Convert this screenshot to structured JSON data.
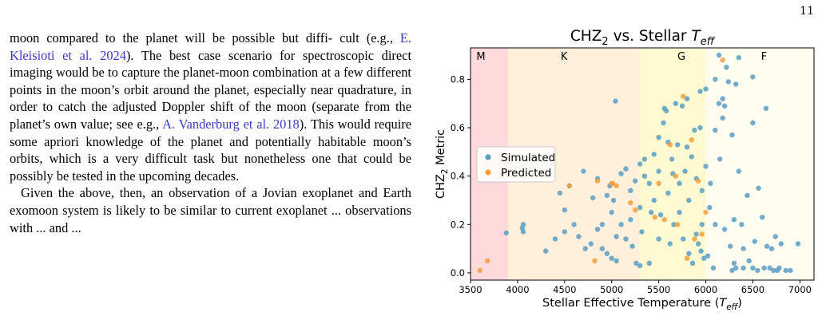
{
  "page": {
    "number": "11"
  },
  "body_text": {
    "p1": [
      {
        "t": "moon compared to the planet will be possible but diffi- cult (e.g., "
      },
      {
        "t": "E. Kleisioti et al. 2024",
        "cite": true
      },
      {
        "t": "). The best case scenario for spectroscopic direct imaging would be to capture the planet-moon combination at a few different points in the moon’s orbit around the planet, especially near quadrature, in order to catch the adjusted Doppler shift of the moon (separate from the planet’s own value; see e.g., "
      },
      {
        "t": "A. Vanderburg et al. 2018",
        "cite": true
      },
      {
        "t": "). This would require some apriori knowledge of the planet and potentially habitable moon’s orbits, which is a very difficult task but nonetheless one that could be possibly be tested in the upcoming decades."
      }
    ],
    "p2": [
      {
        "t": "Given the above, then, an observation of a Jovian exoplanet and Earth exomoon system is likely to be similar to current exoplanet ... observations with ... and ..."
      }
    ]
  },
  "chart_data": {
    "type": "scatter",
    "title": "CHZ",
    "title_sub": "2",
    "title_mid": " vs. Stellar ",
    "title_var": "T",
    "title_var_sub": "eff",
    "xlabel": "Stellar Effective Temperature (",
    "xlabel_var": "T",
    "xlabel_var_sub": "eff",
    "xlabel_end": ")",
    "ylabel": "CHZ",
    "ylabel_sub": "2",
    "ylabel_end": " Metric",
    "xlim": [
      3500,
      7150
    ],
    "ylim": [
      -0.03,
      0.93
    ],
    "xticks": [
      3500,
      4000,
      4500,
      5000,
      5500,
      6000,
      6500,
      7000
    ],
    "yticks": [
      0.0,
      0.2,
      0.4,
      0.6,
      0.8
    ],
    "ytick_labels": [
      "0.0",
      "0.2",
      "0.4",
      "0.6",
      "0.8"
    ],
    "grid": false,
    "legend_position": "center-left",
    "regions": [
      {
        "label": "M",
        "x0": 3500,
        "x1": 3900,
        "color": "#ffd9dc"
      },
      {
        "label": "K",
        "x0": 3900,
        "x1": 5300,
        "color": "#fff0dc"
      },
      {
        "label": "G",
        "x0": 5300,
        "x1": 6000,
        "color": "#fdfad2"
      },
      {
        "label": "F",
        "x0": 6000,
        "x1": 7150,
        "color": "#fffdf0"
      }
    ],
    "series": [
      {
        "name": "Simulated",
        "color": "#5b9ec4",
        "points": [
          [
            3880,
            0.165
          ],
          [
            4050,
            0.185
          ],
          [
            4060,
            0.2
          ],
          [
            4060,
            0.17
          ],
          [
            4300,
            0.09
          ],
          [
            4400,
            0.14
          ],
          [
            4450,
            0.33
          ],
          [
            4500,
            0.26
          ],
          [
            4500,
            0.17
          ],
          [
            4550,
            0.36
          ],
          [
            4600,
            0.2
          ],
          [
            4650,
            0.15
          ],
          [
            4700,
            0.42
          ],
          [
            4720,
            0.1
          ],
          [
            4780,
            0.12
          ],
          [
            4800,
            0.31
          ],
          [
            4850,
            0.39
          ],
          [
            4850,
            0.18
          ],
          [
            4900,
            0.2
          ],
          [
            4900,
            0.1
          ],
          [
            4950,
            0.32
          ],
          [
            4950,
            0.08
          ],
          [
            4980,
            0.36
          ],
          [
            5000,
            0.25
          ],
          [
            5000,
            0.06
          ],
          [
            5020,
            0.3
          ],
          [
            5040,
            0.71
          ],
          [
            5050,
            0.15
          ],
          [
            5050,
            0.05
          ],
          [
            5100,
            0.41
          ],
          [
            5100,
            0.2
          ],
          [
            5150,
            0.14
          ],
          [
            5150,
            0.43
          ],
          [
            5200,
            0.34
          ],
          [
            5200,
            0.22
          ],
          [
            5220,
            0.11
          ],
          [
            5250,
            0.38
          ],
          [
            5260,
            0.04
          ],
          [
            5300,
            0.45
          ],
          [
            5300,
            0.27
          ],
          [
            5300,
            0.03
          ],
          [
            5320,
            0.17
          ],
          [
            5350,
            0.47
          ],
          [
            5350,
            0.4
          ],
          [
            5400,
            0.37
          ],
          [
            5400,
            0.04
          ],
          [
            5420,
            0.25
          ],
          [
            5450,
            0.49
          ],
          [
            5450,
            0.3
          ],
          [
            5500,
            0.42
          ],
          [
            5500,
            0.14
          ],
          [
            5500,
            0.56
          ],
          [
            5520,
            0.24
          ],
          [
            5550,
            0.62
          ],
          [
            5560,
            0.68
          ],
          [
            5580,
            0.67
          ],
          [
            5600,
            0.54
          ],
          [
            5600,
            0.33
          ],
          [
            5620,
            0.12
          ],
          [
            5640,
            0.47
          ],
          [
            5650,
            0.41
          ],
          [
            5660,
            0.2
          ],
          [
            5680,
            0.7
          ],
          [
            5700,
            0.53
          ],
          [
            5720,
            0.25
          ],
          [
            5720,
            0.37
          ],
          [
            5750,
            0.69
          ],
          [
            5760,
            0.14
          ],
          [
            5780,
            0.42
          ],
          [
            5800,
            0.52
          ],
          [
            5800,
            0.72
          ],
          [
            5820,
            0.08
          ],
          [
            5820,
            0.3
          ],
          [
            5850,
            0.48
          ],
          [
            5860,
            0.04
          ],
          [
            5880,
            0.59
          ],
          [
            5900,
            0.16
          ],
          [
            5900,
            0.39
          ],
          [
            5920,
            0.12
          ],
          [
            5940,
            0.75
          ],
          [
            5940,
            0.6
          ],
          [
            5950,
            0.09
          ],
          [
            5960,
            0.2
          ],
          [
            5960,
            0.34
          ],
          [
            5980,
            0.06
          ],
          [
            6000,
            0.76
          ],
          [
            6000,
            0.44
          ],
          [
            6020,
            0.07
          ],
          [
            6040,
            0.27
          ],
          [
            6050,
            0.37
          ],
          [
            6080,
            0.02
          ],
          [
            6100,
            0.8
          ],
          [
            6100,
            0.59
          ],
          [
            6100,
            0.2
          ],
          [
            6140,
            0.9
          ],
          [
            6140,
            0.7
          ],
          [
            6150,
            0.47
          ],
          [
            6180,
            0.72
          ],
          [
            6180,
            0.64
          ],
          [
            6200,
            0.69
          ],
          [
            6200,
            0.18
          ],
          [
            6220,
            0.85
          ],
          [
            6240,
            0.79
          ],
          [
            6260,
            0.11
          ],
          [
            6280,
            0.57
          ],
          [
            6300,
            0.04
          ],
          [
            6300,
            0.22
          ],
          [
            6320,
            0.78
          ],
          [
            6320,
            0.02
          ],
          [
            6350,
            0.89
          ],
          [
            6350,
            0.42
          ],
          [
            6380,
            0.2
          ],
          [
            6400,
            0.02
          ],
          [
            6400,
            0.1
          ],
          [
            6440,
            0.32
          ],
          [
            6460,
            0.05
          ],
          [
            6500,
            0.62
          ],
          [
            6500,
            0.02
          ],
          [
            6520,
            0.13
          ],
          [
            6550,
            0.01
          ],
          [
            6560,
            0.35
          ],
          [
            6600,
            0.23
          ],
          [
            6620,
            0.02
          ],
          [
            6640,
            0.68
          ],
          [
            6650,
            0.11
          ],
          [
            6680,
            0.02
          ],
          [
            6700,
            0.1
          ],
          [
            6720,
            0.01
          ],
          [
            6740,
            0.15
          ],
          [
            6760,
            0.01
          ],
          [
            6780,
            0.02
          ],
          [
            6800,
            0.12
          ],
          [
            6850,
            0.01
          ],
          [
            6900,
            0.01
          ],
          [
            6980,
            0.12
          ],
          [
            6500,
            0.81
          ],
          [
            6280,
            0.01
          ]
        ]
      },
      {
        "name": "Predicted",
        "color": "#f59d3d",
        "points": [
          [
            3600,
            0.01
          ],
          [
            3680,
            0.05
          ],
          [
            4550,
            0.36
          ],
          [
            4820,
            0.05
          ],
          [
            4850,
            0.38
          ],
          [
            5000,
            0.37
          ],
          [
            5010,
            0.37
          ],
          [
            5050,
            0.36
          ],
          [
            5200,
            0.29
          ],
          [
            5250,
            0.26
          ],
          [
            5460,
            0.23
          ],
          [
            5500,
            0.37
          ],
          [
            5560,
            0.22
          ],
          [
            5620,
            0.53
          ],
          [
            5680,
            0.4
          ],
          [
            5700,
            0.2
          ],
          [
            5760,
            0.73
          ],
          [
            5800,
            0.06
          ],
          [
            5850,
            0.55
          ],
          [
            5880,
            0.14
          ],
          [
            5920,
            0.38
          ],
          [
            5960,
            0.16
          ],
          [
            6000,
            0.25
          ],
          [
            6180,
            0.88
          ]
        ]
      }
    ]
  }
}
